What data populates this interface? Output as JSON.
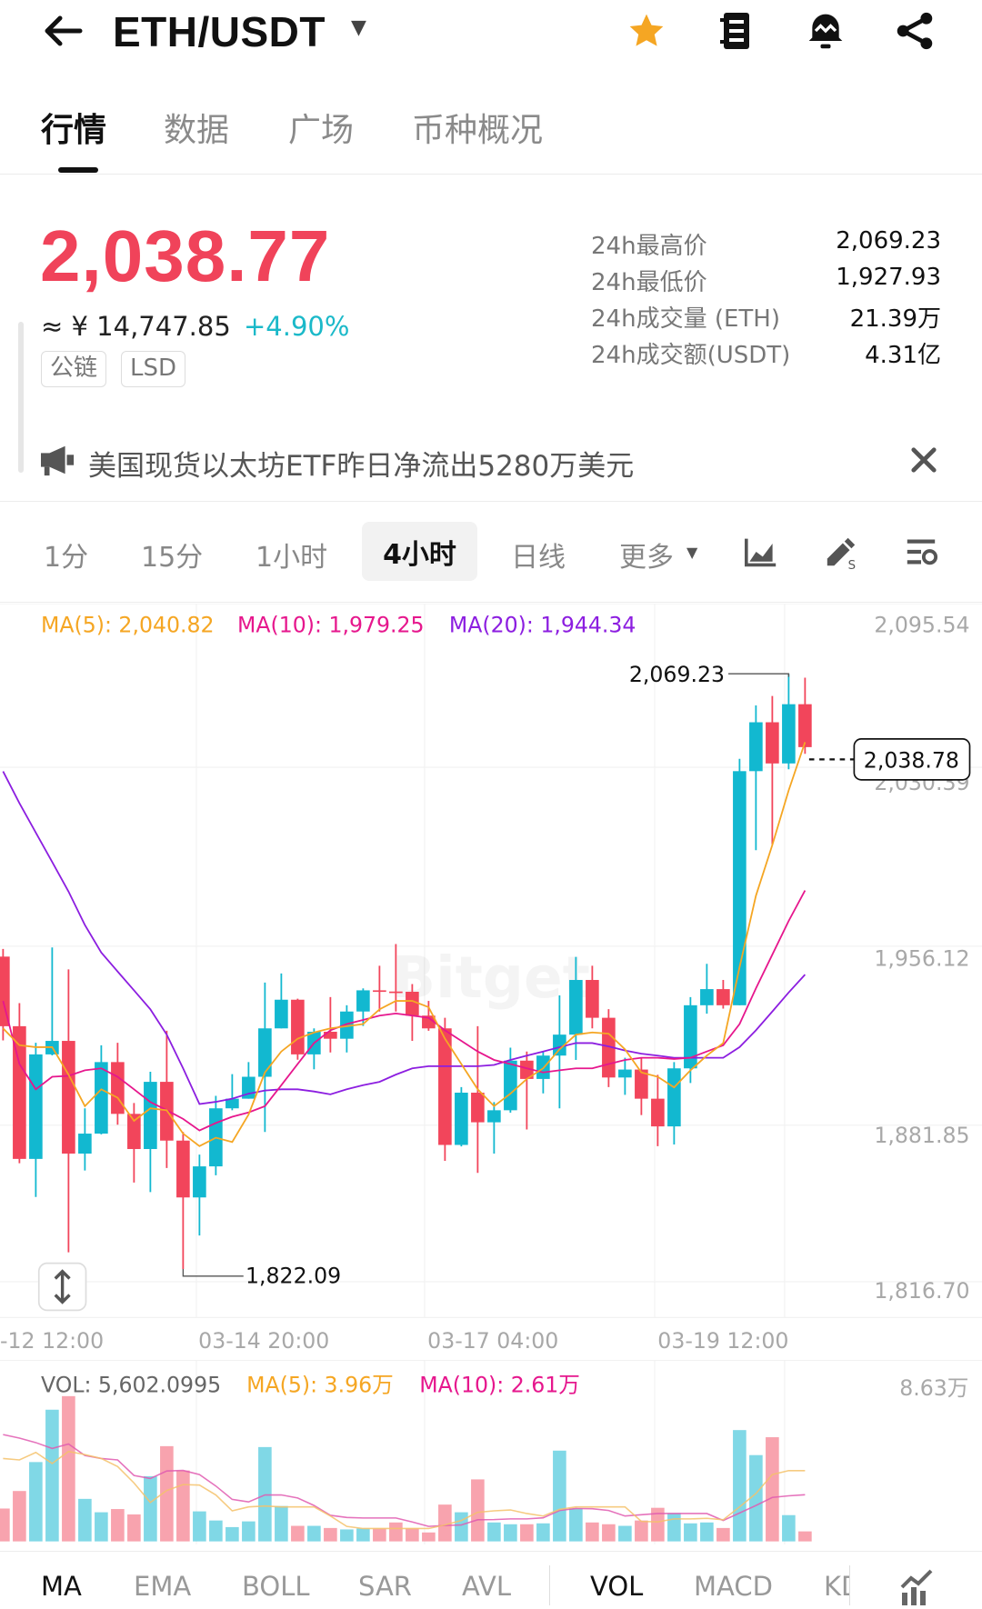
{
  "header": {
    "title": "ETH/USDT",
    "icons": [
      "back-arrow-icon",
      "dropdown-caret-icon",
      "star-icon",
      "orderbook-icon",
      "alert-bell-icon",
      "share-icon"
    ],
    "favorite_color": "#f5a623"
  },
  "tabs": [
    {
      "label": "行情",
      "active": true
    },
    {
      "label": "数据"
    },
    {
      "label": "广场"
    },
    {
      "label": "币种概况"
    }
  ],
  "ticker": {
    "price": "2,038.77",
    "cny": "≈ ¥ 14,747.85",
    "change": "+4.90%",
    "tags": [
      "公链",
      "LSD"
    ],
    "stats": [
      {
        "label": "24h最高价",
        "value": "2,069.23"
      },
      {
        "label": "24h最低价",
        "value": "1,927.93"
      },
      {
        "label": "24h成交量 (ETH)",
        "value": "21.39万"
      },
      {
        "label": "24h成交额(USDT)",
        "value": "4.31亿"
      }
    ],
    "price_color": "#f0435a",
    "up_color": "#1bb9c9"
  },
  "announcement": {
    "text": "美国现货以太坊ETF昨日净流出5280万美元"
  },
  "intervals": [
    {
      "label": "1分"
    },
    {
      "label": "15分"
    },
    {
      "label": "1小时"
    },
    {
      "label": "4小时",
      "selected": true
    },
    {
      "label": "日线"
    },
    {
      "label": "更多"
    }
  ],
  "chart_data": [
    {
      "type": "candlestick",
      "legend": {
        "ma5": "MA(5): 2,040.82",
        "ma10": "MA(10): 1,979.25",
        "ma20": "MA(20): 1,944.34"
      },
      "y_ticks": [
        "2,095.54",
        "2,030.39",
        "1,956.12",
        "1,881.85",
        "1,816.70"
      ],
      "x_ticks": [
        "-12 12:00",
        "03-14 20:00",
        "03-17 04:00",
        "03-19 12:00"
      ],
      "high_label": "2,069.23",
      "low_label": "1,822.09",
      "last_price": "2,038.78",
      "watermark": "Bitget",
      "colors": {
        "up": "#12b8d0",
        "down": "#f2455b",
        "ma5": "#f5a623",
        "ma10": "#e6178d",
        "ma20": "#8c1ee0"
      },
      "ohlc": [
        [
          1951.8,
          1955,
          1917,
          1922.9
        ],
        [
          1922.9,
          1932.5,
          1866,
          1867.8
        ],
        [
          1867.8,
          1916,
          1852,
          1911.2
        ],
        [
          1911.2,
          1955.6,
          1910.8,
          1916.8
        ],
        [
          1916.8,
          1946.5,
          1829,
          1870
        ],
        [
          1870,
          1888.8,
          1863,
          1878.3
        ],
        [
          1878.3,
          1915,
          1878,
          1908
        ],
        [
          1908,
          1916,
          1882,
          1886.5
        ],
        [
          1886.5,
          1891,
          1858,
          1871.9
        ],
        [
          1871.9,
          1904,
          1854,
          1899.8
        ],
        [
          1899.8,
          1921,
          1864,
          1875.4
        ],
        [
          1875.4,
          1879,
          1822.09,
          1851.8
        ],
        [
          1851.8,
          1869.6,
          1836,
          1864.7
        ],
        [
          1864.7,
          1894,
          1861,
          1888.8
        ],
        [
          1888.8,
          1903,
          1888,
          1892.8
        ],
        [
          1892.8,
          1908,
          1892.8,
          1901.9
        ],
        [
          1901.9,
          1941,
          1879,
          1922
        ],
        [
          1922,
          1944.8,
          1922,
          1933.9
        ],
        [
          1933.9,
          1934.3,
          1909,
          1911.2
        ],
        [
          1911.2,
          1922,
          1905,
          1920.6
        ],
        [
          1920.6,
          1935,
          1912,
          1917.7
        ],
        [
          1917.7,
          1931.6,
          1912,
          1929
        ],
        [
          1929,
          1938.6,
          1923,
          1937.8
        ],
        [
          1937.8,
          1948,
          1929,
          1937.3
        ],
        [
          1937.3,
          1957,
          1929,
          1937.2
        ],
        [
          1937.2,
          1940.4,
          1916.8,
          1927.3
        ],
        [
          1927.3,
          1933.4,
          1921,
          1922
        ],
        [
          1922,
          1926.4,
          1867,
          1873.6
        ],
        [
          1873.6,
          1897.6,
          1873,
          1895.3
        ],
        [
          1895.3,
          1922.9,
          1862,
          1883
        ],
        [
          1883,
          1891.4,
          1870,
          1888
        ],
        [
          1888,
          1914,
          1887,
          1908.6
        ],
        [
          1908.6,
          1912.4,
          1880,
          1901
        ],
        [
          1901,
          1912.4,
          1895,
          1910.7
        ],
        [
          1910.7,
          1935.7,
          1888.8,
          1919.4
        ],
        [
          1919.4,
          1951.7,
          1908.9,
          1942.1
        ],
        [
          1942.1,
          1948,
          1922,
          1926.4
        ],
        [
          1926.4,
          1930,
          1897.6,
          1901.6
        ],
        [
          1901.6,
          1909.8,
          1894.4,
          1904.9
        ],
        [
          1904.9,
          1909.8,
          1886,
          1892.8
        ],
        [
          1892.8,
          1902.7,
          1873.1,
          1881.3
        ],
        [
          1881.3,
          1908,
          1873.8,
          1905.4
        ],
        [
          1905.4,
          1935,
          1899.3,
          1931.6
        ],
        [
          1931.6,
          1948.8,
          1928.1,
          1938.3
        ],
        [
          1938.3,
          1942.1,
          1930.2,
          1931.6
        ],
        [
          1931.6,
          2033.9,
          1931.6,
          2028.8
        ],
        [
          2028.8,
          2056.1,
          1996,
          2049.1
        ],
        [
          2049.1,
          2060,
          1998.4,
          2032
        ],
        [
          2032,
          2069.23,
          2029.6,
          2056.6
        ],
        [
          2056.6,
          2067.6,
          2036,
          2038.78
        ]
      ],
      "ma5": [
        1922.0,
        1915.0,
        1914.2,
        1914.2,
        1902.8,
        1889.7,
        1896.7,
        1893.2,
        1883.6,
        1888.8,
        1888.0,
        1878.3,
        1873.1,
        1876.6,
        1874.8,
        1886.2,
        1903.7,
        1912.4,
        1917.7,
        1920.3,
        1922.0,
        1922.9,
        1923.8,
        1929.9,
        1933.4,
        1933.4,
        1930.8,
        1917.7,
        1907.2,
        1896.7,
        1889.7,
        1894.9,
        1901.0,
        1905.4,
        1913.3,
        1919.4,
        1920.3,
        1919.8,
        1913.3,
        1903.7,
        1901.9,
        1897.5,
        1904.6,
        1910.7,
        1915.9,
        1947.4,
        1977.1,
        1998.1,
        2020.8,
        2040.82
      ],
      "ma10": [
        1933.4,
        1907.2,
        1896.7,
        1901.9,
        1902.3,
        1904.6,
        1905.4,
        1901.9,
        1896.7,
        1891.4,
        1888.0,
        1884.4,
        1879.6,
        1882.7,
        1885.3,
        1887.1,
        1889.7,
        1898.4,
        1907.2,
        1915.9,
        1921.2,
        1923.8,
        1925.5,
        1927.3,
        1928.2,
        1927.3,
        1926.4,
        1921.2,
        1916.8,
        1912.4,
        1908.9,
        1907.2,
        1905.4,
        1903.7,
        1904.6,
        1905.4,
        1905.4,
        1907.2,
        1908.9,
        1909.8,
        1909.8,
        1909.3,
        1909.8,
        1912.4,
        1915.0,
        1923.8,
        1938.6,
        1952.6,
        1966.6,
        1979.25
      ],
      "ma20": [
        2028.7,
        2015.5,
        2003.3,
        1991.1,
        1978.8,
        1964.9,
        1953.5,
        1945.6,
        1937.8,
        1929.9,
        1919.4,
        1905.4,
        1890.6,
        1891.5,
        1892.8,
        1894.9,
        1896.2,
        1896.7,
        1896.7,
        1895.8,
        1894.6,
        1896.7,
        1898.4,
        1899.8,
        1902.8,
        1905.4,
        1906.3,
        1906.3,
        1906.3,
        1906.3,
        1906.8,
        1908.9,
        1910.7,
        1912.4,
        1914.2,
        1915.9,
        1915.9,
        1914.5,
        1912.8,
        1911.5,
        1910.7,
        1909.8,
        1909.8,
        1909.8,
        1909.8,
        1914.2,
        1921.2,
        1929.0,
        1936.9,
        1944.34
      ]
    },
    {
      "type": "bar",
      "unit": "万",
      "legend": {
        "vol": "VOL: 5,602.0995",
        "ma5": "MA(5): 3.96万",
        "ma10": "MA(10): 2.61万"
      },
      "y_max_label": "8.63万",
      "colors": {
        "up": "#80d8e6",
        "down": "#f8a3ae",
        "ma5": "#f5c26b",
        "ma10": "#e05bb0"
      },
      "values": [
        1.84,
        2.82,
        4.44,
        7.37,
        8.13,
        2.38,
        1.63,
        1.81,
        1.51,
        3.65,
        5.33,
        3.97,
        1.68,
        1.17,
        0.8,
        1.12,
        5.28,
        1.98,
        0.87,
        0.87,
        0.75,
        0.67,
        0.72,
        0.72,
        1.06,
        0.72,
        0.5,
        2.06,
        1.63,
        3.47,
        1.06,
        0.96,
        0.96,
        1.01,
        5.08,
        1.84,
        1.06,
        0.96,
        0.87,
        1.17,
        1.88,
        1.59,
        1.01,
        1.06,
        0.75,
        6.23,
        4.83,
        5.83,
        1.47,
        0.56
      ],
      "ma5": [
        4.64,
        4.56,
        4.98,
        4.36,
        5.03,
        4.86,
        4.64,
        4.19,
        3.27,
        2.18,
        2.85,
        3.18,
        3.15,
        2.6,
        1.71,
        1.93,
        1.98,
        1.93,
        1.93,
        1.93,
        1.42,
        0.84,
        0.72,
        0.72,
        0.72,
        0.72,
        0.72,
        0.92,
        1.17,
        1.63,
        1.71,
        1.76,
        1.56,
        1.42,
        1.79,
        1.93,
        1.93,
        1.93,
        1.93,
        1.12,
        1.09,
        1.26,
        1.26,
        1.29,
        1.21,
        1.93,
        2.68,
        3.74,
        3.96,
        3.96
      ],
      "ma10": [
        5.98,
        5.78,
        5.53,
        5.2,
        5.45,
        4.81,
        4.64,
        4.56,
        3.69,
        3.52,
        3.94,
        3.97,
        3.74,
        3.1,
        2.35,
        2.21,
        2.6,
        2.6,
        2.43,
        2.01,
        1.46,
        1.34,
        1.31,
        1.31,
        1.31,
        1.09,
        0.84,
        0.89,
        0.92,
        1.21,
        1.22,
        1.26,
        1.26,
        1.32,
        1.73,
        1.84,
        1.83,
        1.73,
        1.42,
        1.49,
        1.56,
        1.56,
        1.56,
        1.56,
        1.17,
        1.59,
        2.01,
        2.46,
        2.55,
        2.61
      ]
    }
  ],
  "indicator_tabs": [
    {
      "label": "MA",
      "active": true
    },
    {
      "label": "EMA"
    },
    {
      "label": "BOLL"
    },
    {
      "label": "SAR"
    },
    {
      "label": "AVL"
    },
    {
      "label": "VOL",
      "active": true
    },
    {
      "label": "MACD"
    },
    {
      "label": "KD"
    }
  ]
}
